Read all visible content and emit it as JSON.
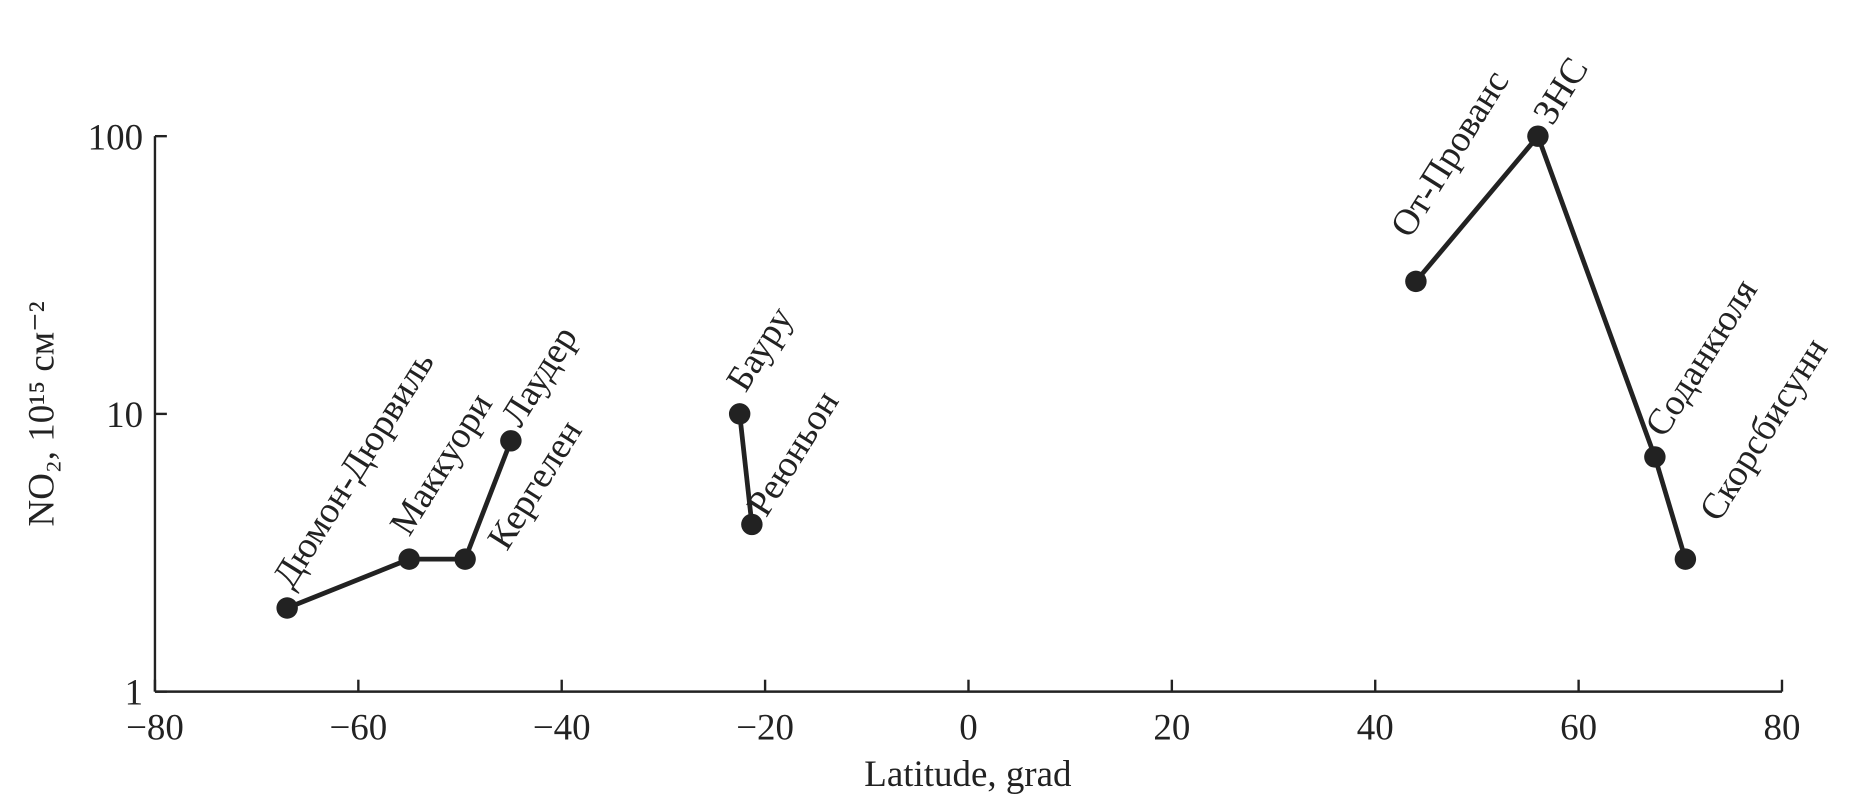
{
  "chart_data": {
    "type": "line",
    "log_y": true,
    "color": "#222222",
    "xlabel": "Latitude, grad",
    "ylabel": "NO₂, 10¹⁵ см⁻²",
    "xlim": [
      -80,
      80
    ],
    "ylim": [
      1,
      100
    ],
    "xticks": [
      {
        "value": -80,
        "label": "−80"
      },
      {
        "value": -60,
        "label": "−60"
      },
      {
        "value": -40,
        "label": "−40"
      },
      {
        "value": -20,
        "label": "−20"
      },
      0,
      20,
      40,
      60,
      80
    ],
    "yticks": [
      1,
      10,
      100
    ],
    "series": [
      {
        "color": "#222222",
        "x": [
          -67,
          -55,
          -49.5,
          -45
        ],
        "values": [
          2,
          3,
          3,
          8
        ],
        "labels": [
          "Дюмон-Дюрвиль",
          "Маккуори",
          "Кергелен",
          "Лаудер"
        ]
      },
      {
        "color": "#222222",
        "x": [
          -22.5,
          -21.3
        ],
        "values": [
          10,
          4
        ],
        "labels": [
          "Бауру",
          "Реюньон"
        ]
      },
      {
        "color": "#222222",
        "x": [
          44,
          56,
          67.5,
          70.5
        ],
        "values": [
          30,
          100,
          7,
          3
        ],
        "labels": [
          "От-Прованс",
          "ЗНС",
          "Соданкюля",
          "Скорсбисунн"
        ]
      }
    ]
  }
}
